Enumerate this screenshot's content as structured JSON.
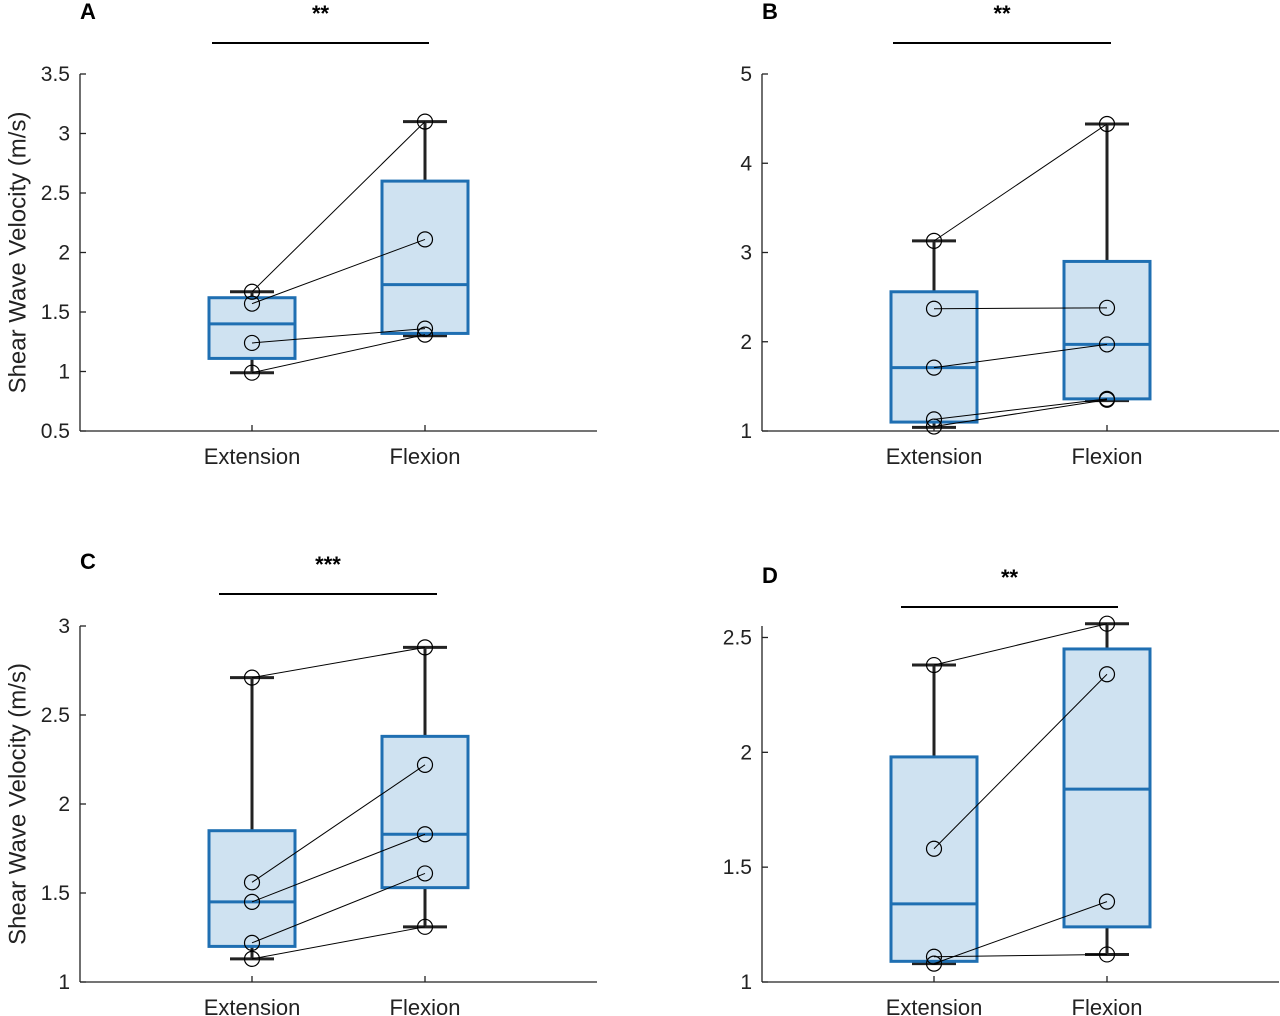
{
  "colors": {
    "box_edge": "#1f6fb2",
    "box_fill": "#cfe2f1",
    "axis": "#222222",
    "whisker": "#222222",
    "pair_line": "#000000"
  },
  "chart_data": [
    {
      "type": "box",
      "panel_label": "A",
      "significance": "**",
      "ylabel": "Shear Wave Velocity (m/s)",
      "categories": [
        "Extension",
        "Flexion"
      ],
      "ylim": [
        0.5,
        3.5
      ],
      "yticks": [
        0.5,
        1,
        1.5,
        2,
        2.5,
        3,
        3.5
      ],
      "ytick_labels": [
        "0.5",
        "1",
        "1.5",
        "2",
        "2.5",
        "3",
        "3.5"
      ],
      "boxes": [
        {
          "min": 0.99,
          "q1": 1.11,
          "median": 1.4,
          "q3": 1.62,
          "max": 1.67
        },
        {
          "min": 1.3,
          "q1": 1.32,
          "median": 1.73,
          "q3": 2.6,
          "max": 3.1
        }
      ],
      "pairs": [
        [
          1.67,
          3.1
        ],
        [
          1.57,
          2.11
        ],
        [
          1.24,
          1.36
        ],
        [
          0.99,
          1.31
        ]
      ]
    },
    {
      "type": "box",
      "panel_label": "B",
      "significance": "**",
      "ylabel": "",
      "categories": [
        "Extension",
        "Flexion"
      ],
      "ylim": [
        1,
        5
      ],
      "yticks": [
        1,
        2,
        3,
        4,
        5
      ],
      "ytick_labels": [
        "1",
        "2",
        "3",
        "4",
        "5"
      ],
      "boxes": [
        {
          "min": 1.04,
          "q1": 1.1,
          "median": 1.71,
          "q3": 2.56,
          "max": 3.13
        },
        {
          "min": 1.34,
          "q1": 1.36,
          "median": 1.97,
          "q3": 2.9,
          "max": 4.44
        }
      ],
      "pairs": [
        [
          3.13,
          4.44
        ],
        [
          2.37,
          2.38
        ],
        [
          1.71,
          1.97
        ],
        [
          1.13,
          1.36
        ],
        [
          1.05,
          1.35
        ]
      ]
    },
    {
      "type": "box",
      "panel_label": "C",
      "significance": "***",
      "ylabel": "Shear Wave Velocity (m/s)",
      "categories": [
        "Extension",
        "Flexion"
      ],
      "ylim": [
        1,
        3
      ],
      "yticks": [
        1,
        1.5,
        2,
        2.5,
        3
      ],
      "ytick_labels": [
        "1",
        "1.5",
        "2",
        "2.5",
        "3"
      ],
      "boxes": [
        {
          "min": 1.13,
          "q1": 1.2,
          "median": 1.45,
          "q3": 1.85,
          "max": 2.71
        },
        {
          "min": 1.31,
          "q1": 1.53,
          "median": 1.83,
          "q3": 2.38,
          "max": 2.88
        }
      ],
      "pairs": [
        [
          2.71,
          2.88
        ],
        [
          1.56,
          2.22
        ],
        [
          1.45,
          1.83
        ],
        [
          1.22,
          1.61
        ],
        [
          1.13,
          1.31
        ]
      ]
    },
    {
      "type": "box",
      "panel_label": "D",
      "significance": "**",
      "ylabel": "",
      "categories": [
        "Extension",
        "Flexion"
      ],
      "ylim": [
        1,
        2.55
      ],
      "yticks": [
        1,
        1.5,
        2,
        2.5
      ],
      "ytick_labels": [
        "1",
        "1.5",
        "2",
        "2.5"
      ],
      "boxes": [
        {
          "min": 1.08,
          "q1": 1.09,
          "median": 1.34,
          "q3": 1.98,
          "max": 2.38
        },
        {
          "min": 1.12,
          "q1": 1.24,
          "median": 1.84,
          "q3": 2.45,
          "max": 2.56
        }
      ],
      "pairs": [
        [
          2.38,
          2.56
        ],
        [
          1.58,
          2.34
        ],
        [
          1.11,
          1.12
        ],
        [
          1.08,
          1.35
        ]
      ]
    }
  ]
}
